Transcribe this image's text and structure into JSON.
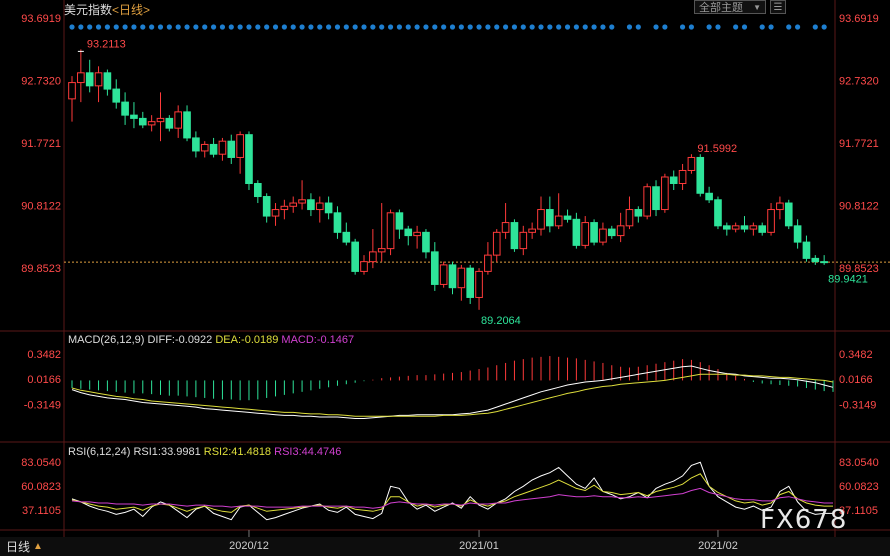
{
  "header": {
    "title": "美元指数",
    "period_label": "<日线>",
    "combo_label": "全部主题",
    "menu_icon": "hamburger-icon"
  },
  "main_panel": {
    "y_ticks": [
      "93.6919",
      "92.7320",
      "91.7721",
      "90.8122",
      "89.8523"
    ],
    "annotations": {
      "max": "93.2113",
      "mid_peak": "91.5992",
      "low": "89.2064",
      "last": "89.9421"
    },
    "colors": {
      "up": "#ff3a3a",
      "down": "#2ee49a",
      "dot": "#1e7fd0"
    }
  },
  "macd_panel": {
    "label": "MACD(26,12,9)",
    "diff": "DIFF:-0.0922",
    "dea": "DEA:-0.0189",
    "macd": "MACD:-0.1467",
    "y_ticks": [
      "0.3482",
      "0.0166",
      "-0.3149"
    ]
  },
  "rsi_panel": {
    "label": "RSI(6,12,24)",
    "rsi1": "RSI1:33.9981",
    "rsi2": "RSI2:41.4818",
    "rsi3": "RSI3:44.4746",
    "y_ticks": [
      "83.0540",
      "60.0823",
      "37.1105"
    ]
  },
  "x_axis": {
    "labels": [
      "2020/12",
      "2021/01",
      "2021/02"
    ]
  },
  "footer": {
    "period_tab": "日线",
    "watermark": "FX678"
  },
  "chart_data": {
    "type": "candlestick",
    "price_scale": {
      "min": 89.8523,
      "max": 93.6919
    },
    "last_price": 89.9421,
    "candles": [
      {
        "o": 92.45,
        "h": 92.8,
        "l": 92.1,
        "c": 92.7
      },
      {
        "o": 92.7,
        "h": 93.21,
        "l": 92.4,
        "c": 92.85
      },
      {
        "o": 92.85,
        "h": 93.05,
        "l": 92.55,
        "c": 92.65
      },
      {
        "o": 92.65,
        "h": 92.95,
        "l": 92.4,
        "c": 92.85
      },
      {
        "o": 92.85,
        "h": 92.9,
        "l": 92.5,
        "c": 92.6
      },
      {
        "o": 92.6,
        "h": 92.75,
        "l": 92.3,
        "c": 92.4
      },
      {
        "o": 92.4,
        "h": 92.55,
        "l": 92.05,
        "c": 92.2
      },
      {
        "o": 92.2,
        "h": 92.4,
        "l": 92.0,
        "c": 92.15
      },
      {
        "o": 92.15,
        "h": 92.25,
        "l": 92.0,
        "c": 92.05
      },
      {
        "o": 92.05,
        "h": 92.2,
        "l": 91.95,
        "c": 92.1
      },
      {
        "o": 92.1,
        "h": 92.55,
        "l": 91.8,
        "c": 92.15
      },
      {
        "o": 92.15,
        "h": 92.2,
        "l": 91.95,
        "c": 92.0
      },
      {
        "o": 92.0,
        "h": 92.35,
        "l": 91.85,
        "c": 92.25
      },
      {
        "o": 92.25,
        "h": 92.35,
        "l": 91.8,
        "c": 91.85
      },
      {
        "o": 91.85,
        "h": 91.95,
        "l": 91.55,
        "c": 91.65
      },
      {
        "o": 91.65,
        "h": 91.8,
        "l": 91.55,
        "c": 91.75
      },
      {
        "o": 91.75,
        "h": 91.85,
        "l": 91.55,
        "c": 91.6
      },
      {
        "o": 91.6,
        "h": 91.85,
        "l": 91.5,
        "c": 91.8
      },
      {
        "o": 91.8,
        "h": 91.9,
        "l": 91.45,
        "c": 91.55
      },
      {
        "o": 91.55,
        "h": 91.95,
        "l": 91.3,
        "c": 91.9
      },
      {
        "o": 91.9,
        "h": 91.95,
        "l": 91.05,
        "c": 91.15
      },
      {
        "o": 91.15,
        "h": 91.2,
        "l": 90.85,
        "c": 90.95
      },
      {
        "o": 90.95,
        "h": 91.0,
        "l": 90.55,
        "c": 90.65
      },
      {
        "o": 90.65,
        "h": 90.85,
        "l": 90.5,
        "c": 90.75
      },
      {
        "o": 90.75,
        "h": 90.9,
        "l": 90.6,
        "c": 90.8
      },
      {
        "o": 90.8,
        "h": 90.95,
        "l": 90.7,
        "c": 90.85
      },
      {
        "o": 90.85,
        "h": 91.2,
        "l": 90.75,
        "c": 90.9
      },
      {
        "o": 90.9,
        "h": 91.0,
        "l": 90.65,
        "c": 90.75
      },
      {
        "o": 90.75,
        "h": 90.95,
        "l": 90.55,
        "c": 90.85
      },
      {
        "o": 90.85,
        "h": 90.95,
        "l": 90.6,
        "c": 90.7
      },
      {
        "o": 90.7,
        "h": 90.8,
        "l": 90.3,
        "c": 90.4
      },
      {
        "o": 90.4,
        "h": 90.55,
        "l": 90.2,
        "c": 90.25
      },
      {
        "o": 90.25,
        "h": 90.3,
        "l": 89.75,
        "c": 89.8
      },
      {
        "o": 89.8,
        "h": 90.05,
        "l": 89.75,
        "c": 89.95
      },
      {
        "o": 89.95,
        "h": 90.45,
        "l": 89.85,
        "c": 90.1
      },
      {
        "o": 90.1,
        "h": 90.85,
        "l": 89.95,
        "c": 90.15
      },
      {
        "o": 90.15,
        "h": 90.75,
        "l": 90.05,
        "c": 90.7
      },
      {
        "o": 90.7,
        "h": 90.75,
        "l": 90.3,
        "c": 90.45
      },
      {
        "o": 90.45,
        "h": 90.5,
        "l": 90.2,
        "c": 90.35
      },
      {
        "o": 90.35,
        "h": 90.5,
        "l": 90.15,
        "c": 90.4
      },
      {
        "o": 90.4,
        "h": 90.45,
        "l": 90.0,
        "c": 90.1
      },
      {
        "o": 90.1,
        "h": 90.25,
        "l": 89.5,
        "c": 89.6
      },
      {
        "o": 89.6,
        "h": 89.95,
        "l": 89.55,
        "c": 89.9
      },
      {
        "o": 89.9,
        "h": 89.95,
        "l": 89.45,
        "c": 89.55
      },
      {
        "o": 89.55,
        "h": 89.9,
        "l": 89.35,
        "c": 89.85
      },
      {
        "o": 89.85,
        "h": 89.9,
        "l": 89.3,
        "c": 89.4
      },
      {
        "o": 89.4,
        "h": 89.85,
        "l": 89.21,
        "c": 89.8
      },
      {
        "o": 89.8,
        "h": 90.25,
        "l": 89.75,
        "c": 90.05
      },
      {
        "o": 90.05,
        "h": 90.45,
        "l": 89.95,
        "c": 90.4
      },
      {
        "o": 90.4,
        "h": 90.85,
        "l": 90.3,
        "c": 90.55
      },
      {
        "o": 90.55,
        "h": 90.6,
        "l": 90.1,
        "c": 90.15
      },
      {
        "o": 90.15,
        "h": 90.5,
        "l": 90.05,
        "c": 90.4
      },
      {
        "o": 90.4,
        "h": 90.55,
        "l": 90.3,
        "c": 90.45
      },
      {
        "o": 90.45,
        "h": 90.95,
        "l": 90.35,
        "c": 90.75
      },
      {
        "o": 90.75,
        "h": 90.95,
        "l": 90.4,
        "c": 90.5
      },
      {
        "o": 90.5,
        "h": 91.0,
        "l": 90.45,
        "c": 90.65
      },
      {
        "o": 90.65,
        "h": 90.75,
        "l": 90.55,
        "c": 90.6
      },
      {
        "o": 90.6,
        "h": 90.7,
        "l": 90.15,
        "c": 90.2
      },
      {
        "o": 90.2,
        "h": 90.65,
        "l": 90.15,
        "c": 90.55
      },
      {
        "o": 90.55,
        "h": 90.6,
        "l": 90.2,
        "c": 90.25
      },
      {
        "o": 90.25,
        "h": 90.55,
        "l": 90.2,
        "c": 90.45
      },
      {
        "o": 90.45,
        "h": 90.5,
        "l": 90.3,
        "c": 90.35
      },
      {
        "o": 90.35,
        "h": 90.7,
        "l": 90.25,
        "c": 90.5
      },
      {
        "o": 90.5,
        "h": 90.95,
        "l": 90.45,
        "c": 90.75
      },
      {
        "o": 90.75,
        "h": 90.8,
        "l": 90.55,
        "c": 90.65
      },
      {
        "o": 90.65,
        "h": 91.15,
        "l": 90.6,
        "c": 91.1
      },
      {
        "o": 91.1,
        "h": 91.2,
        "l": 90.65,
        "c": 90.75
      },
      {
        "o": 90.75,
        "h": 91.3,
        "l": 90.7,
        "c": 91.25
      },
      {
        "o": 91.25,
        "h": 91.35,
        "l": 91.05,
        "c": 91.15
      },
      {
        "o": 91.15,
        "h": 91.45,
        "l": 91.05,
        "c": 91.35
      },
      {
        "o": 91.35,
        "h": 91.6,
        "l": 91.3,
        "c": 91.55
      },
      {
        "o": 91.55,
        "h": 91.6,
        "l": 90.95,
        "c": 91.0
      },
      {
        "o": 91.0,
        "h": 91.1,
        "l": 90.85,
        "c": 90.9
      },
      {
        "o": 90.9,
        "h": 90.95,
        "l": 90.45,
        "c": 90.5
      },
      {
        "o": 90.5,
        "h": 90.55,
        "l": 90.35,
        "c": 90.45
      },
      {
        "o": 90.45,
        "h": 90.55,
        "l": 90.4,
        "c": 90.5
      },
      {
        "o": 90.5,
        "h": 90.65,
        "l": 90.4,
        "c": 90.45
      },
      {
        "o": 90.45,
        "h": 90.55,
        "l": 90.35,
        "c": 90.5
      },
      {
        "o": 90.5,
        "h": 90.55,
        "l": 90.35,
        "c": 90.4
      },
      {
        "o": 90.4,
        "h": 90.85,
        "l": 90.35,
        "c": 90.75
      },
      {
        "o": 90.75,
        "h": 90.95,
        "l": 90.6,
        "c": 90.85
      },
      {
        "o": 90.85,
        "h": 90.9,
        "l": 90.45,
        "c": 90.5
      },
      {
        "o": 90.5,
        "h": 90.6,
        "l": 90.15,
        "c": 90.25
      },
      {
        "o": 90.25,
        "h": 90.35,
        "l": 89.95,
        "c": 90.0
      },
      {
        "o": 90.0,
        "h": 90.05,
        "l": 89.9,
        "c": 89.95
      },
      {
        "o": 89.95,
        "h": 90.05,
        "l": 89.9,
        "c": 89.94
      }
    ],
    "macd_scale": {
      "min": -0.52,
      "max": 0.4
    },
    "macd_hist": [
      -0.1,
      -0.11,
      -0.12,
      -0.13,
      -0.14,
      -0.15,
      -0.16,
      -0.17,
      -0.17,
      -0.18,
      -0.19,
      -0.2,
      -0.2,
      -0.21,
      -0.22,
      -0.23,
      -0.24,
      -0.25,
      -0.25,
      -0.26,
      -0.26,
      -0.25,
      -0.23,
      -0.21,
      -0.19,
      -0.17,
      -0.15,
      -0.13,
      -0.11,
      -0.09,
      -0.07,
      -0.05,
      -0.03,
      -0.01,
      0.01,
      0.03,
      0.04,
      0.05,
      0.06,
      0.07,
      0.07,
      0.08,
      0.09,
      0.1,
      0.11,
      0.13,
      0.15,
      0.17,
      0.2,
      0.23,
      0.26,
      0.28,
      0.3,
      0.31,
      0.32,
      0.31,
      0.3,
      0.29,
      0.27,
      0.25,
      0.23,
      0.2,
      0.18,
      0.17,
      0.18,
      0.2,
      0.22,
      0.24,
      0.26,
      0.28,
      0.27,
      0.24,
      0.2,
      0.15,
      0.1,
      0.06,
      0.02,
      -0.02,
      -0.04,
      -0.05,
      -0.06,
      -0.07,
      -0.08,
      -0.1,
      -0.12,
      -0.14,
      -0.15
    ],
    "macd_diff": [
      -0.12,
      -0.16,
      -0.19,
      -0.21,
      -0.23,
      -0.24,
      -0.25,
      -0.27,
      -0.29,
      -0.3,
      -0.31,
      -0.32,
      -0.33,
      -0.34,
      -0.35,
      -0.37,
      -0.38,
      -0.39,
      -0.4,
      -0.41,
      -0.42,
      -0.43,
      -0.44,
      -0.45,
      -0.46,
      -0.46,
      -0.47,
      -0.47,
      -0.48,
      -0.48,
      -0.48,
      -0.49,
      -0.5,
      -0.5,
      -0.49,
      -0.48,
      -0.47,
      -0.46,
      -0.46,
      -0.45,
      -0.45,
      -0.45,
      -0.45,
      -0.45,
      -0.44,
      -0.43,
      -0.41,
      -0.39,
      -0.35,
      -0.31,
      -0.27,
      -0.23,
      -0.19,
      -0.15,
      -0.12,
      -0.09,
      -0.06,
      -0.04,
      -0.02,
      -0.01,
      0.0,
      0.02,
      0.04,
      0.06,
      0.08,
      0.1,
      0.12,
      0.14,
      0.16,
      0.18,
      0.19,
      0.16,
      0.13,
      0.11,
      0.09,
      0.08,
      0.06,
      0.05,
      0.04,
      0.03,
      0.03,
      0.02,
      0.01,
      -0.01,
      -0.03,
      -0.06,
      -0.09
    ],
    "macd_dea": [
      -0.1,
      -0.13,
      -0.15,
      -0.17,
      -0.19,
      -0.21,
      -0.22,
      -0.24,
      -0.25,
      -0.27,
      -0.28,
      -0.29,
      -0.3,
      -0.31,
      -0.32,
      -0.33,
      -0.34,
      -0.35,
      -0.36,
      -0.37,
      -0.38,
      -0.39,
      -0.4,
      -0.41,
      -0.42,
      -0.42,
      -0.43,
      -0.44,
      -0.44,
      -0.45,
      -0.45,
      -0.46,
      -0.47,
      -0.47,
      -0.47,
      -0.47,
      -0.47,
      -0.47,
      -0.47,
      -0.47,
      -0.47,
      -0.47,
      -0.46,
      -0.46,
      -0.46,
      -0.45,
      -0.44,
      -0.43,
      -0.41,
      -0.38,
      -0.35,
      -0.32,
      -0.29,
      -0.26,
      -0.23,
      -0.2,
      -0.17,
      -0.15,
      -0.12,
      -0.1,
      -0.08,
      -0.07,
      -0.05,
      -0.04,
      -0.03,
      -0.02,
      -0.01,
      0.0,
      0.02,
      0.04,
      0.06,
      0.08,
      0.08,
      0.08,
      0.08,
      0.07,
      0.07,
      0.06,
      0.06,
      0.05,
      0.04,
      0.04,
      0.03,
      0.02,
      0.01,
      0.0,
      -0.02
    ],
    "rsi_scale": {
      "min": 20.0,
      "max": 90.0
    },
    "rsi1": [
      48,
      45,
      41,
      38,
      36,
      33,
      35,
      38,
      31,
      40,
      45,
      42,
      36,
      30,
      38,
      41,
      34,
      31,
      28,
      40,
      42,
      35,
      28,
      30,
      33,
      36,
      39,
      41,
      43,
      37,
      35,
      40,
      33,
      31,
      29,
      34,
      60,
      58,
      45,
      38,
      42,
      36,
      40,
      44,
      39,
      50,
      42,
      38,
      44,
      48,
      55,
      60,
      66,
      70,
      73,
      78,
      70,
      62,
      58,
      68,
      55,
      52,
      48,
      50,
      54,
      49,
      58,
      62,
      65,
      70,
      80,
      83,
      60,
      50,
      45,
      40,
      38,
      41,
      37,
      40,
      55,
      60,
      45,
      36,
      33,
      34,
      34
    ],
    "rsi2": [
      47,
      45,
      43,
      41,
      40,
      38,
      39,
      40,
      37,
      41,
      43,
      42,
      39,
      36,
      39,
      41,
      38,
      36,
      35,
      41,
      42,
      39,
      36,
      37,
      38,
      39,
      40,
      41,
      42,
      40,
      39,
      41,
      38,
      37,
      36,
      38,
      50,
      50,
      45,
      41,
      43,
      40,
      42,
      43,
      41,
      47,
      43,
      41,
      44,
      46,
      50,
      53,
      56,
      59,
      62,
      66,
      62,
      58,
      56,
      61,
      55,
      54,
      52,
      53,
      54,
      51,
      55,
      57,
      59,
      62,
      68,
      72,
      60,
      54,
      50,
      46,
      44,
      45,
      42,
      44,
      52,
      55,
      48,
      44,
      42,
      41,
      41
    ],
    "rsi3": [
      46,
      45,
      45,
      44,
      44,
      43,
      43,
      43,
      42,
      43,
      43,
      43,
      42,
      41,
      42,
      42,
      41,
      41,
      40,
      41,
      41,
      41,
      40,
      40,
      40,
      40,
      41,
      41,
      41,
      41,
      41,
      41,
      40,
      40,
      39,
      40,
      44,
      45,
      44,
      43,
      43,
      42,
      43,
      43,
      42,
      44,
      43,
      43,
      44,
      44,
      46,
      47,
      48,
      49,
      50,
      52,
      51,
      50,
      50,
      51,
      50,
      50,
      49,
      49,
      50,
      49,
      50,
      51,
      52,
      53,
      56,
      58,
      54,
      52,
      50,
      48,
      47,
      47,
      46,
      46,
      49,
      50,
      48,
      46,
      45,
      44,
      44
    ]
  }
}
